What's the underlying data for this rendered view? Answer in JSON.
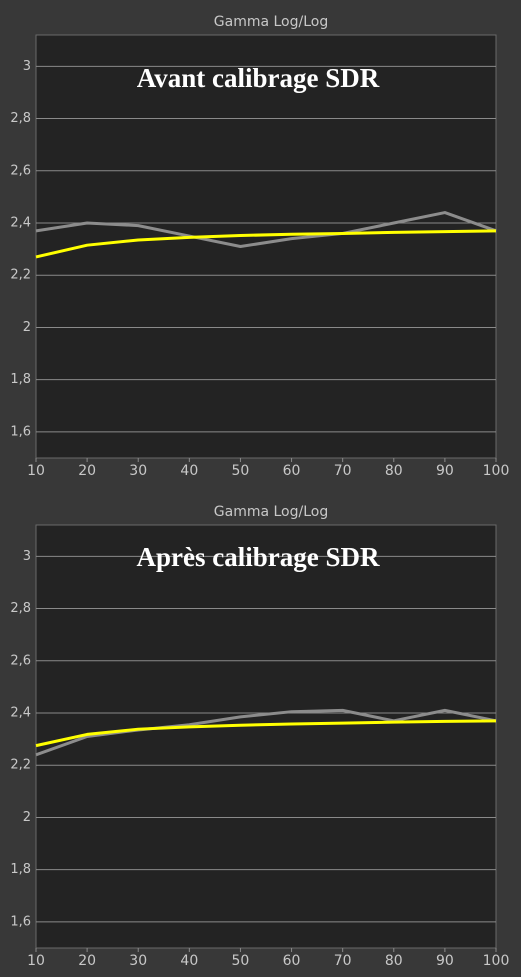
{
  "chart_data": [
    {
      "type": "line",
      "title": "Gamma Log/Log",
      "annotation": "Avant calibrage SDR",
      "x": [
        10,
        20,
        30,
        40,
        50,
        60,
        70,
        80,
        90,
        100
      ],
      "series": [
        {
          "color": "#ffff00",
          "values": [
            2.27,
            2.315,
            2.335,
            2.345,
            2.352,
            2.357,
            2.36,
            2.364,
            2.367,
            2.37
          ]
        },
        {
          "color": "#8c8c8c",
          "values": [
            2.37,
            2.4,
            2.39,
            2.35,
            2.31,
            2.34,
            2.36,
            2.4,
            2.44,
            2.37
          ]
        }
      ],
      "xlim": [
        10,
        100
      ],
      "xticks": [
        10,
        20,
        30,
        40,
        50,
        60,
        70,
        80,
        90,
        100
      ],
      "ylim": [
        1.5,
        3.12
      ],
      "yticks": [
        {
          "value": 1.6,
          "label": "1,6"
        },
        {
          "value": 1.8,
          "label": "1,8"
        },
        2,
        {
          "value": 2.2,
          "label": "2,2"
        },
        {
          "value": 2.4,
          "label": "2,4"
        },
        {
          "value": 2.6,
          "label": "2,6"
        },
        {
          "value": 2.8,
          "label": "2,8"
        },
        3
      ],
      "grid": true
    },
    {
      "type": "line",
      "title": "Gamma Log/Log",
      "annotation": "Après calibrage SDR",
      "x": [
        10,
        20,
        30,
        40,
        50,
        60,
        70,
        80,
        90,
        100
      ],
      "series": [
        {
          "color": "#ffff00",
          "values": [
            2.275,
            2.318,
            2.338,
            2.347,
            2.353,
            2.358,
            2.361,
            2.365,
            2.368,
            2.37
          ]
        },
        {
          "color": "#8c8c8c",
          "values": [
            2.24,
            2.31,
            2.335,
            2.355,
            2.385,
            2.405,
            2.41,
            2.37,
            2.41,
            2.37
          ]
        }
      ],
      "xlim": [
        10,
        100
      ],
      "xticks": [
        10,
        20,
        30,
        40,
        50,
        60,
        70,
        80,
        90,
        100
      ],
      "ylim": [
        1.5,
        3.12
      ],
      "yticks": [
        {
          "value": 1.6,
          "label": "1,6"
        },
        {
          "value": 1.8,
          "label": "1,8"
        },
        2,
        {
          "value": 2.2,
          "label": "2,2"
        },
        {
          "value": 2.4,
          "label": "2,4"
        },
        {
          "value": 2.6,
          "label": "2,6"
        },
        {
          "value": 2.8,
          "label": "2,8"
        },
        3
      ],
      "grid": true
    }
  ]
}
